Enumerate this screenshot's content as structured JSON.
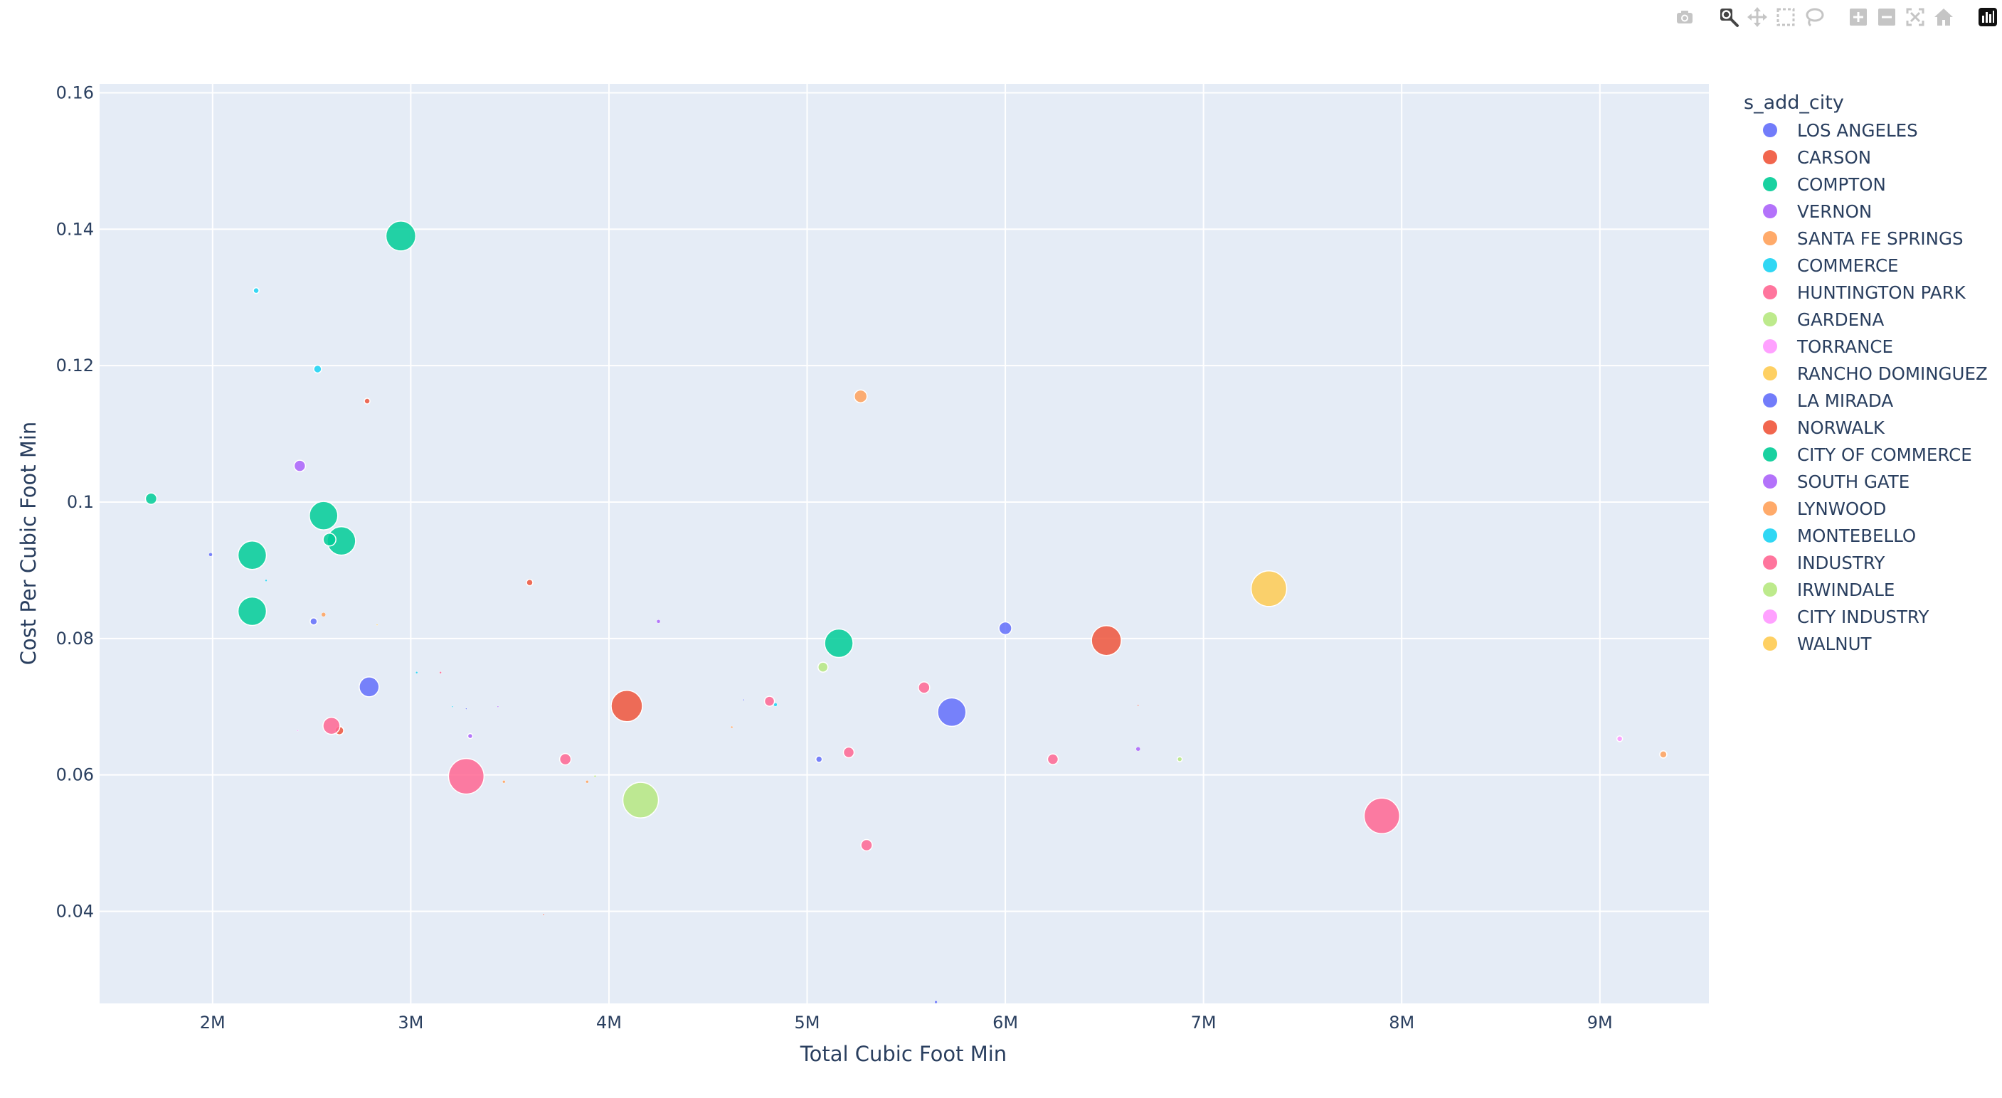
{
  "modebar": {
    "buttons": [
      {
        "name": "camera-icon",
        "active": false
      },
      {
        "name": "zoom-icon",
        "active": true
      },
      {
        "name": "pan-icon",
        "active": false
      },
      {
        "name": "box-select-icon",
        "active": false
      },
      {
        "name": "lasso-select-icon",
        "active": false
      },
      {
        "name": "zoom-in-icon",
        "active": false
      },
      {
        "name": "zoom-out-icon",
        "active": false
      },
      {
        "name": "autoscale-icon",
        "active": false
      },
      {
        "name": "reset-axes-icon",
        "active": false
      },
      {
        "name": "plotly-logo-icon",
        "active": false
      }
    ]
  },
  "chart_data": {
    "type": "scatter",
    "xlabel": "Total Cubic Foot Min",
    "ylabel": "Cost Per Cubic Foot Min",
    "xlim": [
      1430000,
      9550000
    ],
    "ylim": [
      0.0265,
      0.1613
    ],
    "x_ticks": [
      {
        "value": 2000000,
        "label": "2M"
      },
      {
        "value": 3000000,
        "label": "3M"
      },
      {
        "value": 4000000,
        "label": "4M"
      },
      {
        "value": 5000000,
        "label": "5M"
      },
      {
        "value": 6000000,
        "label": "6M"
      },
      {
        "value": 7000000,
        "label": "7M"
      },
      {
        "value": 8000000,
        "label": "8M"
      },
      {
        "value": 9000000,
        "label": "9M"
      }
    ],
    "y_ticks": [
      {
        "value": 0.04,
        "label": "0.04"
      },
      {
        "value": 0.06,
        "label": "0.06"
      },
      {
        "value": 0.08,
        "label": "0.08"
      },
      {
        "value": 0.1,
        "label": "0.1"
      },
      {
        "value": 0.12,
        "label": "0.12"
      },
      {
        "value": 0.14,
        "label": "0.14"
      },
      {
        "value": 0.16,
        "label": "0.16"
      }
    ],
    "grid": true,
    "legend_title": "s_add_city",
    "legend_position": "right",
    "background_color": "#e5ecf6",
    "series": [
      {
        "name": "LOS ANGELES",
        "color": "#636efa",
        "points": [
          [
            1990000,
            0.0923,
            5
          ],
          [
            2510000,
            0.0825,
            10
          ],
          [
            2790000,
            0.0729,
            28
          ],
          [
            3280000,
            0.0697,
            2
          ],
          [
            5730000,
            0.0692,
            40
          ],
          [
            6000000,
            0.0815,
            18
          ],
          [
            5650000,
            0.0267,
            4
          ]
        ]
      },
      {
        "name": "CARSON",
        "color": "#EF553B",
        "points": [
          [
            2640000,
            0.0665,
            12
          ],
          [
            3600000,
            0.0882,
            9
          ],
          [
            4090000,
            0.0701,
            44
          ],
          [
            6510000,
            0.0797,
            42
          ],
          [
            6670000,
            0.0702,
            2
          ]
        ]
      },
      {
        "name": "COMPTON",
        "color": "#00cc96",
        "points": [
          [
            1690000,
            0.1005,
            16
          ],
          [
            2200000,
            0.0922,
            40
          ],
          [
            2200000,
            0.084,
            40
          ],
          [
            2560000,
            0.098,
            40
          ],
          [
            2650000,
            0.0943,
            40
          ],
          [
            2950000,
            0.139,
            42
          ],
          [
            5160000,
            0.0793,
            40
          ]
        ]
      },
      {
        "name": "VERNON",
        "color": "#ab63fa",
        "points": [
          [
            2440000,
            0.1053,
            16
          ],
          [
            3300000,
            0.0657,
            7
          ],
          [
            4250000,
            0.0825,
            5
          ],
          [
            6670000,
            0.0638,
            6
          ]
        ]
      },
      {
        "name": "SANTA FE SPRINGS",
        "color": "#FFA15A",
        "points": [
          [
            2560000,
            0.0835,
            6
          ],
          [
            3470000,
            0.059,
            4
          ],
          [
            3890000,
            0.059,
            4
          ],
          [
            4620000,
            0.067,
            3
          ],
          [
            5270000,
            0.1155,
            18
          ]
        ]
      },
      {
        "name": "COMMERCE",
        "color": "#19d3f3",
        "points": [
          [
            2220000,
            0.131,
            8
          ],
          [
            2270000,
            0.0885,
            3
          ],
          [
            2530000,
            0.1195,
            11
          ],
          [
            3030000,
            0.075,
            3
          ],
          [
            4840000,
            0.0703,
            5
          ]
        ]
      },
      {
        "name": "HUNTINGTON PARK",
        "color": "#FF6692",
        "points": [
          [
            2600000,
            0.0672,
            24
          ],
          [
            3150000,
            0.075,
            3
          ],
          [
            4810000,
            0.0708,
            14
          ],
          [
            5590000,
            0.0728,
            16
          ],
          [
            6240000,
            0.0623,
            15
          ],
          [
            3780000,
            0.0623,
            16
          ]
        ]
      },
      {
        "name": "GARDENA",
        "color": "#B6E880",
        "points": [
          [
            4160000,
            0.0563,
            50
          ],
          [
            5080000,
            0.0758,
            14
          ],
          [
            6880000,
            0.0623,
            7
          ]
        ]
      },
      {
        "name": "TORRANCE",
        "color": "#FF97FF",
        "points": [
          [
            9100000,
            0.0653,
            8
          ]
        ]
      },
      {
        "name": "RANCHO DOMINGUEZ",
        "color": "#FECB52",
        "points": [
          [
            7330000,
            0.0873,
            50
          ]
        ]
      },
      {
        "name": "LA MIRADA",
        "color": "#636efa",
        "points": [
          [
            5060000,
            0.0623,
            9
          ],
          [
            4680000,
            0.071,
            2
          ]
        ]
      },
      {
        "name": "NORWALK",
        "color": "#EF553B",
        "points": [
          [
            2780000,
            0.1148,
            8
          ],
          [
            3670000,
            0.0395,
            2
          ]
        ]
      },
      {
        "name": "CITY OF COMMERCE",
        "color": "#00cc96",
        "points": [
          [
            2590000,
            0.0945,
            18
          ]
        ]
      },
      {
        "name": "SOUTH GATE",
        "color": "#ab63fa",
        "points": [
          [
            3440000,
            0.07,
            2
          ]
        ]
      },
      {
        "name": "LYNWOOD",
        "color": "#FFA15A",
        "points": [
          [
            9320000,
            0.063,
            10
          ]
        ]
      },
      {
        "name": "MONTEBELLO",
        "color": "#19d3f3",
        "points": [
          [
            3210000,
            0.07,
            2
          ]
        ]
      },
      {
        "name": "INDUSTRY",
        "color": "#FF6692",
        "points": [
          [
            3280000,
            0.0598,
            50
          ],
          [
            5300000,
            0.0497,
            16
          ],
          [
            5210000,
            0.0633,
            15
          ],
          [
            7900000,
            0.054,
            50
          ]
        ]
      },
      {
        "name": "IRWINDALE",
        "color": "#B6E880",
        "points": [
          [
            3930000,
            0.0598,
            3
          ]
        ]
      },
      {
        "name": "CITY INDUSTRY",
        "color": "#FF97FF",
        "points": [
          [
            2430000,
            0.0665,
            2
          ]
        ]
      },
      {
        "name": "WALNUT",
        "color": "#FECB52",
        "points": [
          [
            2830000,
            0.082,
            2
          ]
        ]
      }
    ]
  }
}
